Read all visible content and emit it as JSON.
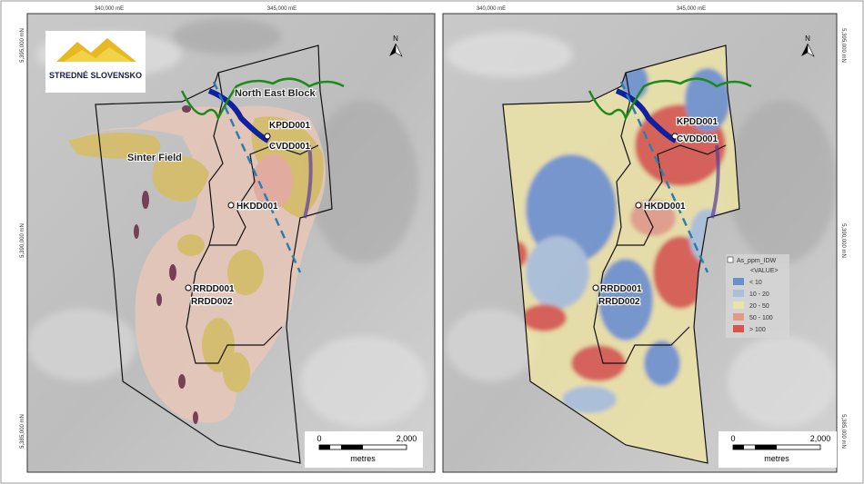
{
  "left_map": {
    "grid_x": [
      "340,000 mE",
      "345,000 mE"
    ],
    "grid_y": [
      "5,395,000 mN",
      "5,390,000 mN",
      "5,385,000 mN"
    ],
    "logo": "STREDNÉ SLOVENSKO",
    "areas": [
      "North East Block",
      "Sinter Field"
    ],
    "drill_holes": [
      "KPDD001",
      "CVDD001",
      "HKDD001",
      "RRDD001",
      "RRDD002"
    ],
    "north": "N",
    "scale": {
      "start": "0",
      "end": "2,000",
      "unit": "metres"
    }
  },
  "right_map": {
    "grid_x": [
      "340,000 mE",
      "345,000 mE"
    ],
    "grid_y": [
      "5,395,000 mN",
      "5,390,000 mN",
      "5,385,000 mN"
    ],
    "drill_holes": [
      "KPDD001",
      "CVDD001",
      "HKDD001",
      "RRDD001",
      "RRDD002"
    ],
    "north": "N",
    "scale": {
      "start": "0",
      "end": "2,000",
      "unit": "metres"
    },
    "legend": {
      "title": "As_ppm_IDW",
      "subtitle": "<VALUE>",
      "items": [
        {
          "label": "< 10",
          "color": "#6a8fcf"
        },
        {
          "label": "10 - 20",
          "color": "#a9bfdc"
        },
        {
          "label": "20 - 50",
          "color": "#ece2a6"
        },
        {
          "label": "50 - 100",
          "color": "#e59a86"
        },
        {
          "label": "> 100",
          "color": "#d9534a"
        }
      ]
    }
  }
}
